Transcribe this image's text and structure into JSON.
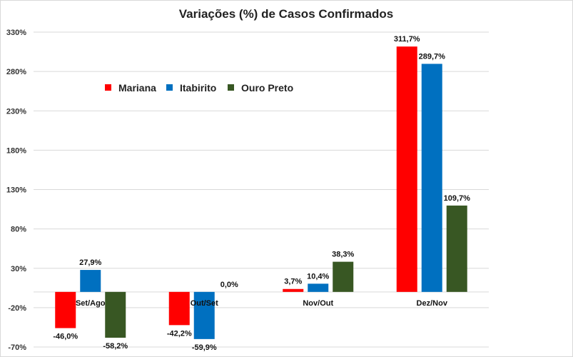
{
  "chart_data": {
    "type": "bar",
    "title": "Variações (%) de Casos Confirmados",
    "xlabel": "",
    "ylabel": "",
    "ylim": [
      -70,
      330
    ],
    "yticks": [
      -70,
      -20,
      30,
      80,
      130,
      180,
      230,
      280,
      330
    ],
    "ytick_labels": [
      "-70%",
      "-20%",
      "30%",
      "80%",
      "130%",
      "180%",
      "230%",
      "280%",
      "330%"
    ],
    "grid": true,
    "legend_position": "top-left",
    "categories": [
      "Set/Ago",
      "Out/Set",
      "Nov/Out",
      "Dez/Nov"
    ],
    "series": [
      {
        "name": "Mariana",
        "color": "#ff0000",
        "values": [
          -46.0,
          -42.2,
          3.7,
          311.7
        ],
        "labels": [
          "-46,0%",
          "-42,2%",
          "3,7%",
          "311,7%"
        ]
      },
      {
        "name": "Itabirito",
        "color": "#0070c0",
        "values": [
          27.9,
          -59.9,
          10.4,
          289.7
        ],
        "labels": [
          "27,9%",
          "-59,9%",
          "10,4%",
          "289,7%"
        ]
      },
      {
        "name": "Ouro Preto",
        "color": "#385723",
        "values": [
          -58.2,
          0.0,
          38.3,
          109.7
        ],
        "labels": [
          "-58,2%",
          "0,0%",
          "38,3%",
          "109,7%"
        ]
      }
    ]
  }
}
